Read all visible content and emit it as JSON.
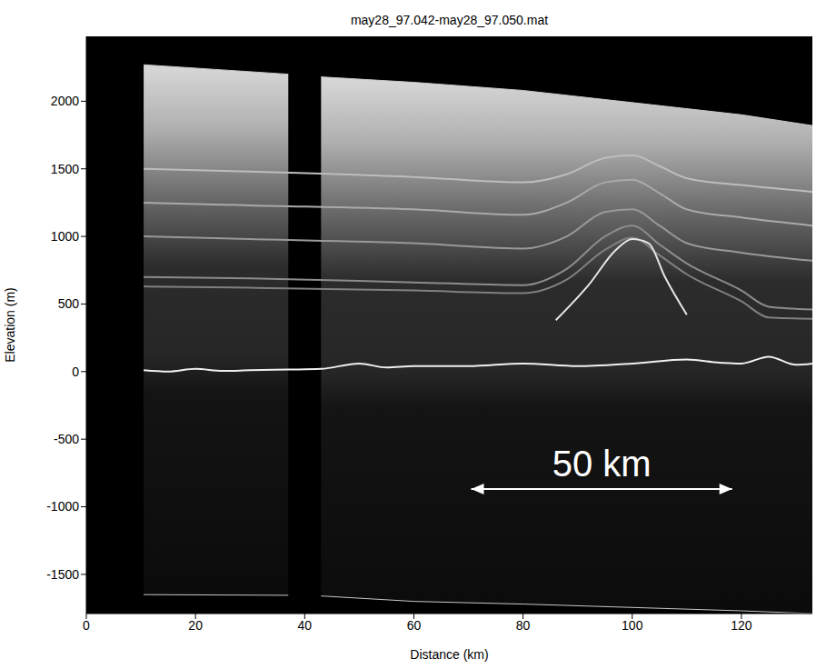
{
  "chart_data": {
    "type": "radargram",
    "title": "may28_97.042-may28_97.050.mat",
    "x_label": "Distance (km)",
    "y_label": "Elevation (m)",
    "xlim": [
      0,
      133
    ],
    "ylim": [
      -1790,
      2480
    ],
    "xticks": [
      0,
      20,
      40,
      60,
      80,
      100,
      120
    ],
    "yticks": [
      -1500,
      -1000,
      -500,
      0,
      500,
      1000,
      1500,
      2000
    ],
    "grid": false,
    "series": [
      {
        "type": "area",
        "color": "#c8c8c8",
        "x": [
          10.5,
          37
        ],
        "values": [
          [
            -1650,
            2270
          ],
          [
            -1655,
            2200
          ]
        ]
      },
      {
        "type": "area",
        "color": "#c8c8c8",
        "x": [
          43,
          60,
          80,
          100,
          120,
          133
        ],
        "values": [
          [
            -1660,
            2180
          ],
          [
            -1700,
            2140
          ],
          [
            -1720,
            2080
          ],
          [
            -1745,
            1990
          ],
          [
            -1770,
            1900
          ],
          [
            -1790,
            1820
          ]
        ]
      },
      {
        "type": "line",
        "color": "#bdbdbd",
        "x": [
          10.5,
          30,
          60,
          80,
          88,
          95,
          100,
          105,
          110,
          120,
          133
        ],
        "values": [
          1500,
          1480,
          1440,
          1400,
          1460,
          1580,
          1600,
          1520,
          1430,
          1380,
          1330
        ]
      },
      {
        "type": "line",
        "color": "#aaaaaa",
        "x": [
          10.5,
          30,
          60,
          80,
          88,
          95,
          100,
          105,
          110,
          120,
          133
        ],
        "values": [
          1250,
          1230,
          1200,
          1160,
          1250,
          1400,
          1420,
          1320,
          1200,
          1140,
          1080
        ]
      },
      {
        "type": "line",
        "color": "#999999",
        "x": [
          10.5,
          30,
          60,
          80,
          88,
          95,
          100,
          105,
          110,
          120,
          133
        ],
        "values": [
          1000,
          980,
          950,
          910,
          1000,
          1180,
          1200,
          1080,
          950,
          880,
          820
        ]
      },
      {
        "type": "line",
        "color": "#8c8c8c",
        "x": [
          10.5,
          30,
          60,
          80,
          88,
          95,
          100,
          105,
          110,
          120,
          125,
          133
        ],
        "values": [
          700,
          690,
          660,
          640,
          760,
          1000,
          1080,
          940,
          800,
          600,
          480,
          460
        ]
      },
      {
        "type": "line",
        "color": "#808080",
        "x": [
          10.5,
          30,
          60,
          80,
          88,
          95,
          100,
          105,
          110,
          120,
          125,
          133
        ],
        "values": [
          630,
          620,
          600,
          580,
          680,
          900,
          990,
          860,
          720,
          520,
          400,
          390
        ]
      },
      {
        "type": "line",
        "color": "#e6e6e6",
        "x": [
          86,
          92,
          97,
          100,
          103,
          106,
          110
        ],
        "values": [
          380,
          640,
          900,
          980,
          950,
          700,
          420
        ]
      },
      {
        "type": "line",
        "color": "#f0f0f0",
        "x": [
          10.5,
          15,
          20,
          25,
          30,
          37,
          43,
          50,
          55,
          60,
          70,
          80,
          90,
          100,
          110,
          115,
          120,
          125,
          130,
          133
        ],
        "values": [
          10,
          0,
          20,
          5,
          10,
          15,
          20,
          60,
          30,
          40,
          40,
          60,
          40,
          60,
          90,
          70,
          60,
          110,
          50,
          60
        ]
      }
    ],
    "annotation": {
      "text": "50 km",
      "x": [
        70.5,
        118.3
      ],
      "y": -869,
      "color": "#ffffff"
    }
  }
}
